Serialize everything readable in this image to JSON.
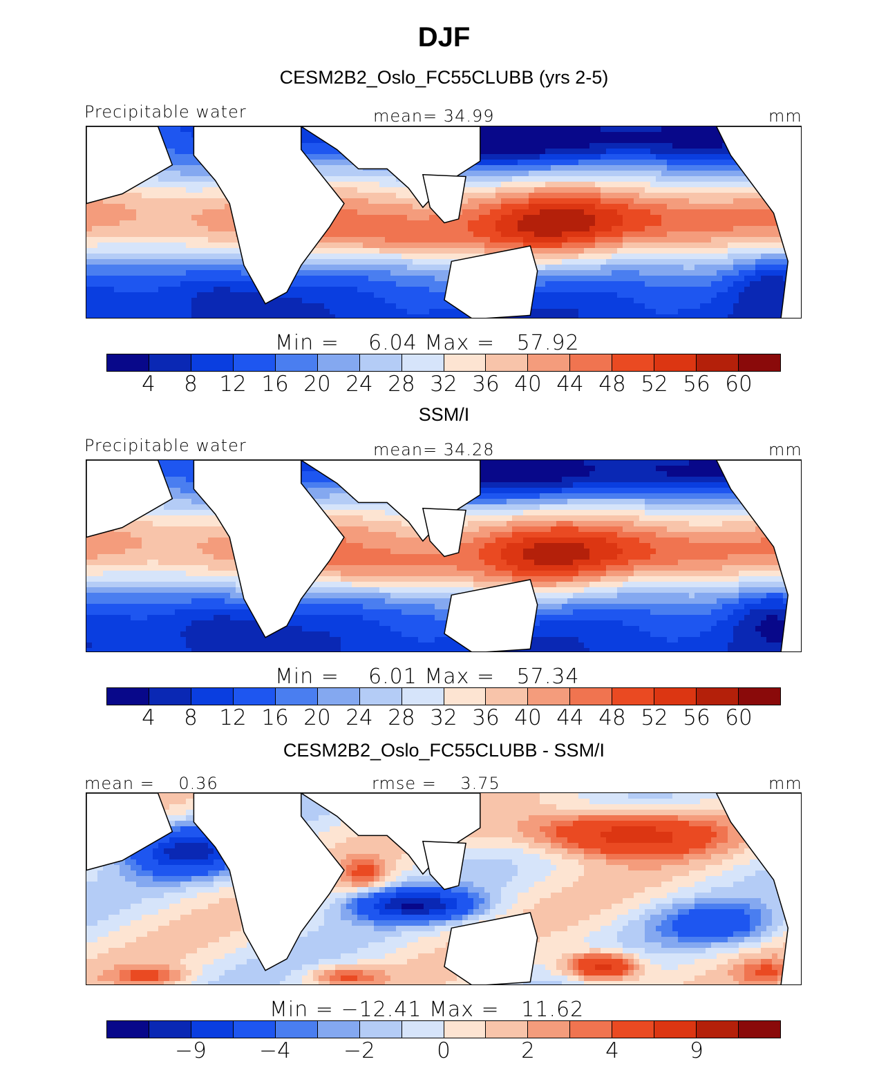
{
  "figure": {
    "title": "DJF",
    "panels": [
      {
        "subtitle": "CESM2B2_Oslo_FC55CLUBB (yrs 2-5)",
        "left_label": "Precipitable water",
        "center_label": "mean=  34.99",
        "right_label": "mm",
        "stats": "Min =    6.04 Max =   57.92",
        "colorbar_ticks": [
          "4",
          "8",
          "12",
          "16",
          "20",
          "24",
          "28",
          "32",
          "36",
          "40",
          "44",
          "48",
          "52",
          "56",
          "60"
        ],
        "field_type": "model"
      },
      {
        "subtitle": "SSM/I",
        "left_label": "Precipitable water",
        "center_label": "mean=  34.28",
        "right_label": "mm",
        "stats": "Min =    6.01 Max =   57.34",
        "colorbar_ticks": [
          "4",
          "8",
          "12",
          "16",
          "20",
          "24",
          "28",
          "32",
          "36",
          "40",
          "44",
          "48",
          "52",
          "56",
          "60"
        ],
        "field_type": "obs"
      },
      {
        "subtitle": "CESM2B2_Oslo_FC55CLUBB - SSM/I",
        "left_label": "mean =    0.36",
        "center_label": "rmse =    3.75",
        "right_label": "mm",
        "stats": "Min = −12.41 Max =   11.62",
        "colorbar_ticks": [
          "−9",
          "−4",
          "−2",
          "0",
          "2",
          "4",
          "9"
        ],
        "field_type": "diff"
      }
    ]
  },
  "palette": [
    "#08088a",
    "#0a28b4",
    "#0a3ee0",
    "#1e56f0",
    "#4a7ef0",
    "#84a8f0",
    "#b4ccf6",
    "#d6e4fa",
    "#fde4d2",
    "#f8c4aa",
    "#f49c7c",
    "#f07450",
    "#ea4a22",
    "#dc3612",
    "#b4200a",
    "#8a0a0a"
  ]
}
